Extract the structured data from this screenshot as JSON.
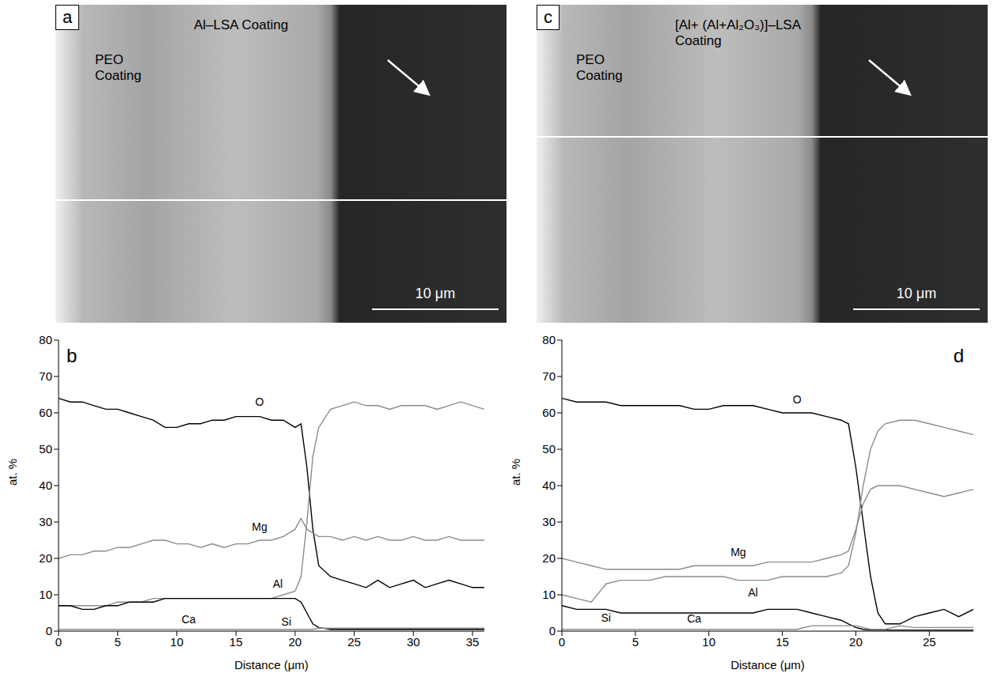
{
  "images": [
    {
      "panel": "a",
      "left_label": "PEO Coating",
      "right_label": "Al–LSA Coating",
      "scale_bar": "10 μm"
    },
    {
      "panel": "c",
      "left_label": "PEO Coating",
      "right_label": "[Al+ (Al+Al₂O₃)]–LSA Coating",
      "scale_bar": "10 μm"
    }
  ],
  "chart_data": [
    {
      "type": "line",
      "panel": "b",
      "x_label": "Distance (μm)",
      "y_label": "at. %",
      "xlim": [
        0,
        36
      ],
      "xticks": [
        0,
        5,
        10,
        15,
        20,
        25,
        30,
        35
      ],
      "ylim": [
        0,
        80
      ],
      "yticks": [
        0,
        10,
        20,
        30,
        40,
        50,
        60,
        70,
        80
      ],
      "grid": false,
      "x": [
        0,
        1,
        2,
        3,
        4,
        5,
        6,
        7,
        8,
        9,
        10,
        11,
        12,
        13,
        14,
        15,
        16,
        17,
        18,
        19,
        20,
        20.5,
        21,
        21.5,
        22,
        23,
        24,
        25,
        26,
        27,
        28,
        29,
        30,
        31,
        32,
        33,
        34,
        35,
        36
      ],
      "series": [
        {
          "name": "O",
          "color": "#000000",
          "line_style": "solid",
          "values": [
            64,
            63,
            63,
            62,
            61,
            61,
            60,
            59,
            58,
            56,
            56,
            57,
            57,
            58,
            58,
            59,
            59,
            59,
            58,
            58,
            56,
            57,
            45,
            28,
            18,
            15,
            14,
            13,
            12,
            14,
            12,
            13,
            14,
            12,
            13,
            14,
            13,
            12,
            12
          ]
        },
        {
          "name": "Mg",
          "color": "#8c8c8c",
          "line_style": "solid",
          "values": [
            20,
            21,
            21,
            22,
            22,
            23,
            23,
            24,
            25,
            25,
            24,
            24,
            23,
            24,
            23,
            24,
            24,
            25,
            25,
            26,
            28,
            31,
            28,
            27,
            26,
            26,
            25,
            26,
            25,
            26,
            25,
            25,
            26,
            25,
            25,
            26,
            25,
            25,
            25
          ]
        },
        {
          "name": "Al",
          "color": "#8c8c8c",
          "line_style": "solid",
          "values": [
            7,
            7,
            7,
            7,
            7,
            8,
            8,
            8,
            9,
            9,
            9,
            9,
            9,
            9,
            9,
            9,
            9,
            9,
            9,
            10,
            11,
            15,
            30,
            48,
            56,
            61,
            62,
            63,
            62,
            62,
            61,
            62,
            62,
            62,
            61,
            62,
            63,
            62,
            61
          ]
        },
        {
          "name": "Si",
          "color": "#000000",
          "line_style": "solid",
          "values": [
            7,
            7,
            6,
            6,
            7,
            7,
            8,
            8,
            8,
            9,
            9,
            9,
            9,
            9,
            9,
            9,
            9,
            9,
            9,
            9,
            9,
            8,
            5,
            2,
            1,
            0.5,
            0.5,
            0.5,
            0.5,
            0.5,
            0.5,
            0.5,
            0.5,
            0.5,
            0.5,
            0.5,
            0.5,
            0.5,
            0.5
          ]
        },
        {
          "name": "Ca",
          "color": "#8c8c8c",
          "line_style": "solid",
          "values": [
            0.5,
            0.5,
            0.5,
            0.5,
            0.5,
            0.5,
            0.5,
            0.5,
            0.5,
            0.5,
            0.5,
            0.5,
            0.5,
            0.5,
            0.5,
            0.5,
            0.5,
            0.5,
            0.5,
            0.5,
            0.5,
            0.5,
            0.5,
            0.5,
            0.8,
            0.8,
            0.8,
            0.8,
            0.8,
            0.8,
            0.8,
            0.8,
            0.8,
            0.8,
            0.8,
            0.8,
            0.8,
            0.8,
            0.8
          ]
        }
      ]
    },
    {
      "type": "line",
      "panel": "d",
      "x_label": "Distance (μm)",
      "y_label": "at. %",
      "xlim": [
        0,
        28
      ],
      "xticks": [
        0,
        5,
        10,
        15,
        20,
        25
      ],
      "ylim": [
        0,
        80
      ],
      "yticks": [
        0,
        10,
        20,
        30,
        40,
        50,
        60,
        70,
        80
      ],
      "grid": false,
      "x": [
        0,
        1,
        2,
        3,
        4,
        5,
        6,
        7,
        8,
        9,
        10,
        11,
        12,
        13,
        14,
        15,
        16,
        17,
        18,
        19,
        19.5,
        20,
        20.5,
        21,
        21.5,
        22,
        23,
        24,
        25,
        26,
        27,
        28
      ],
      "series": [
        {
          "name": "O",
          "color": "#000000",
          "line_style": "solid",
          "values": [
            64,
            63,
            63,
            63,
            62,
            62,
            62,
            62,
            62,
            61,
            61,
            62,
            62,
            62,
            61,
            60,
            60,
            60,
            59,
            58,
            57,
            45,
            30,
            15,
            5,
            2,
            2,
            4,
            5,
            6,
            4,
            6
          ]
        },
        {
          "name": "Mg",
          "color": "#8c8c8c",
          "line_style": "solid",
          "values": [
            20,
            19,
            18,
            17,
            17,
            17,
            17,
            17,
            17,
            18,
            18,
            18,
            18,
            18,
            19,
            19,
            19,
            19,
            20,
            21,
            22,
            28,
            35,
            39,
            40,
            40,
            40,
            39,
            38,
            37,
            38,
            39
          ]
        },
        {
          "name": "Al",
          "color": "#8c8c8c",
          "line_style": "solid",
          "values": [
            10,
            9,
            8,
            13,
            14,
            14,
            14,
            15,
            15,
            15,
            15,
            15,
            14,
            14,
            14,
            15,
            15,
            15,
            15,
            16,
            18,
            27,
            40,
            50,
            55,
            57,
            58,
            58,
            57,
            56,
            55,
            54
          ]
        },
        {
          "name": "Si",
          "color": "#000000",
          "line_style": "solid",
          "values": [
            7,
            6,
            6,
            6,
            5,
            5,
            5,
            5,
            5,
            5,
            5,
            5,
            5,
            5,
            6,
            6,
            6,
            5,
            4,
            3,
            2,
            1,
            0.5,
            0.3,
            0.3,
            0.3,
            0.3,
            0.3,
            0.3,
            0.3,
            0.3,
            0.3
          ]
        },
        {
          "name": "Ca",
          "color": "#8c8c8c",
          "line_style": "solid",
          "values": [
            0.5,
            0.5,
            0.5,
            0.5,
            0.5,
            0.5,
            0.5,
            0.5,
            0.5,
            0.5,
            0.5,
            0.5,
            0.5,
            0.5,
            0.5,
            0.5,
            0.5,
            1.5,
            1.5,
            1.5,
            1.5,
            1.5,
            1,
            0.5,
            0.5,
            0.5,
            1.5,
            1,
            1,
            1,
            1,
            1
          ]
        }
      ]
    }
  ]
}
